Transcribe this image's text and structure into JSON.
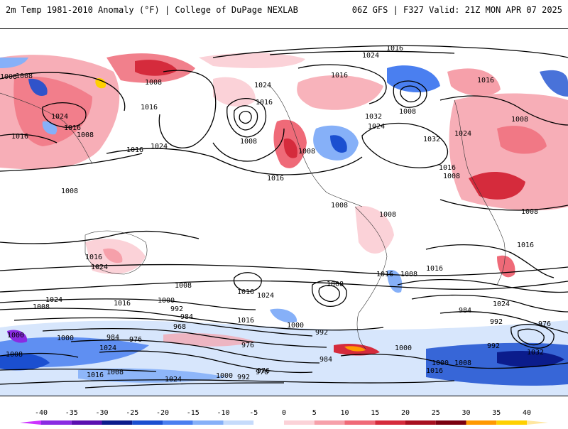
{
  "header": {
    "left_title": "2m Temp 1981-2010 Anomaly (°F) | College of DuPage NEXLAB",
    "right_title": "06Z GFS | F327 Valid: 21Z MON APR 07 2025"
  },
  "colorbar": {
    "ticks": [
      "-40",
      "-35",
      "-30",
      "-25",
      "-20",
      "-15",
      "-10",
      "-5",
      "0",
      "5",
      "10",
      "15",
      "20",
      "25",
      "30",
      "35",
      "40"
    ],
    "colors": [
      "#cc33ff",
      "#8a2be2",
      "#5b0fb0",
      "#0b1c8c",
      "#1b4fd0",
      "#4a7ff0",
      "#86b0f8",
      "#c6dbfb",
      "#ffffff",
      "#fbd2d8",
      "#f6a0aa",
      "#ef6a78",
      "#d52b3c",
      "#a80f1f",
      "#7a0010",
      "#ff9900",
      "#ffd000"
    ]
  },
  "pressure_labels": [
    {
      "text": "1016"
    },
    {
      "text": "1024"
    },
    {
      "text": "1008"
    },
    {
      "text": "1008"
    },
    {
      "text": "1016"
    },
    {
      "text": "1024"
    },
    {
      "text": "1016"
    },
    {
      "text": "1008"
    },
    {
      "text": "1016"
    },
    {
      "text": "1008"
    },
    {
      "text": "1016"
    },
    {
      "text": "1024"
    },
    {
      "text": "1016"
    },
    {
      "text": "1008"
    },
    {
      "text": "1024"
    },
    {
      "text": "1016"
    },
    {
      "text": "1032"
    },
    {
      "text": "1024"
    },
    {
      "text": "1032"
    },
    {
      "text": "1024"
    },
    {
      "text": "1008"
    },
    {
      "text": "1008"
    },
    {
      "text": "1008"
    },
    {
      "text": "1016"
    },
    {
      "text": "1016"
    },
    {
      "text": "1008"
    },
    {
      "text": "1008"
    },
    {
      "text": "1008"
    },
    {
      "text": "1008"
    },
    {
      "text": "1016"
    },
    {
      "text": "1016"
    },
    {
      "text": "1024"
    },
    {
      "text": "1016"
    },
    {
      "text": "1008"
    },
    {
      "text": "1016"
    },
    {
      "text": "1024"
    },
    {
      "text": "1024"
    },
    {
      "text": "1008"
    },
    {
      "text": "1016"
    },
    {
      "text": "1000"
    },
    {
      "text": "992"
    },
    {
      "text": "984"
    },
    {
      "text": "976"
    },
    {
      "text": "968"
    },
    {
      "text": "1000"
    },
    {
      "text": "1016"
    },
    {
      "text": "992"
    },
    {
      "text": "976"
    },
    {
      "text": "984"
    },
    {
      "text": "1000"
    },
    {
      "text": "1000"
    },
    {
      "text": "1008"
    },
    {
      "text": "1024"
    },
    {
      "text": "976"
    },
    {
      "text": "984"
    },
    {
      "text": "992"
    },
    {
      "text": "976"
    },
    {
      "text": "1000"
    },
    {
      "text": "1008"
    },
    {
      "text": "1016"
    },
    {
      "text": "1008"
    },
    {
      "text": "1000"
    },
    {
      "text": "992"
    },
    {
      "text": "976"
    },
    {
      "text": "1024"
    },
    {
      "text": "1000"
    },
    {
      "text": "1008"
    },
    {
      "text": "1016"
    },
    {
      "text": "1032"
    },
    {
      "text": "992"
    },
    {
      "text": "984"
    },
    {
      "text": "1024"
    },
    {
      "text": "1016"
    },
    {
      "text": "1008"
    },
    {
      "text": "1016"
    },
    {
      "text": "1008"
    }
  ]
}
